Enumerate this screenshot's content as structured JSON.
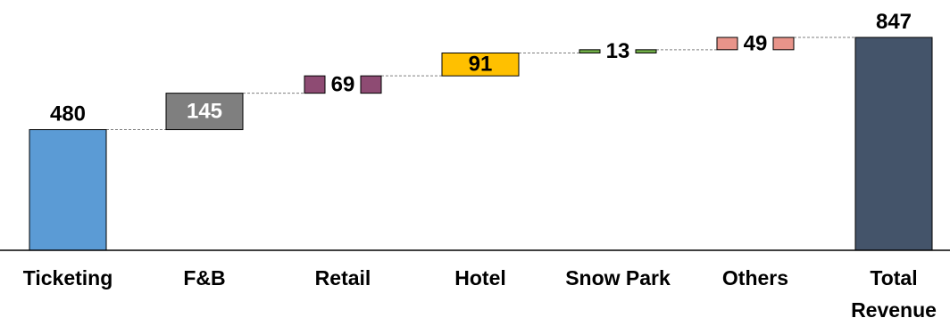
{
  "chart_data": {
    "type": "waterfall",
    "title": "",
    "xlabel": "",
    "ylabel": "",
    "categories": [
      {
        "lines": [
          "Ticketing"
        ]
      },
      {
        "lines": [
          "F&B"
        ]
      },
      {
        "lines": [
          "Retail"
        ]
      },
      {
        "lines": [
          "Hotel"
        ]
      },
      {
        "lines": [
          "Snow Park"
        ]
      },
      {
        "lines": [
          "Others"
        ]
      },
      {
        "lines": [
          "Total",
          "Revenue"
        ]
      }
    ],
    "values": [
      480,
      145,
      69,
      91,
      13,
      49,
      847
    ],
    "kinds": [
      "base",
      "increment",
      "increment",
      "increment",
      "increment",
      "increment",
      "total"
    ],
    "colors": [
      "#5b9bd5",
      "#7f7f7f",
      "#8e4b73",
      "#ffc000",
      "#70ad47",
      "#e8948a",
      "#44546a"
    ],
    "label_colors": [
      "#000000",
      "#ffffff",
      "#000000",
      "#000000",
      "#000000",
      "#000000",
      "#000000"
    ],
    "ylim": [
      0,
      847
    ],
    "grid": false,
    "legend": "none",
    "connectors": "dashed"
  }
}
